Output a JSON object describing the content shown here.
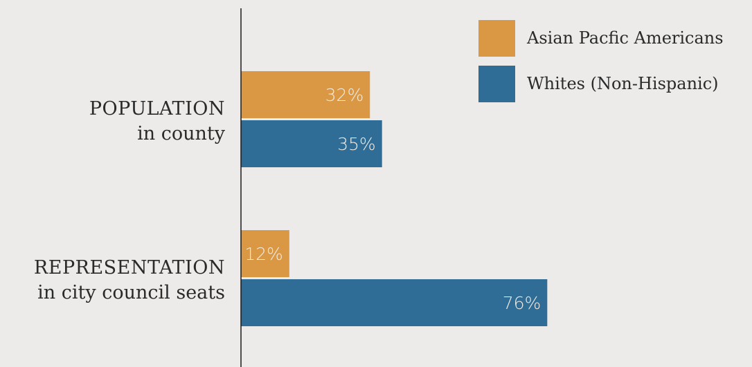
{
  "chart_data": {
    "type": "bar",
    "orientation": "horizontal",
    "categories": [
      {
        "title": "POPULATION",
        "subtitle": "in county"
      },
      {
        "title": "REPRESENTATION",
        "subtitle": "in city council seats"
      }
    ],
    "series": [
      {
        "name": "Asian Pacfic Americans",
        "color": "#db9844",
        "values": [
          32,
          12
        ]
      },
      {
        "name": "Whites (Non-Hispanic)",
        "color": "#2f6d96",
        "values": [
          35,
          76
        ]
      }
    ],
    "value_suffix": "%",
    "xlim": [
      0,
      100
    ],
    "grid": false,
    "legend_position": "top-right"
  }
}
